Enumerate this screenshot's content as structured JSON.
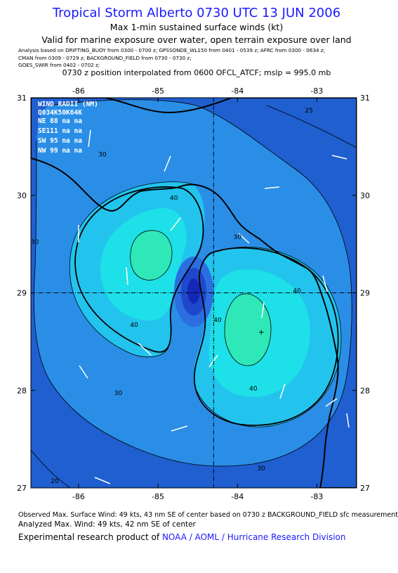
{
  "header": {
    "title": "Tropical Storm Alberto 0730 UTC 13 JUN 2006",
    "subtitle1": "Max 1-min sustained surface winds (kt)",
    "subtitle2": "Valid for marine exposure over water, open terrain exposure over land",
    "analysis_lines": [
      "Analysis based on   DRIFTING_BUOY from 0300 - 0700 z;  GPSSONDE_WL150 from 0401 - 0539 z;   AFRC from 0300 - 0634 z;",
      "CMAN from 0309 - 0729 z;   BACKGROUND_FIELD from 0730 - 0730 z;",
      "GOES_SWIR from 0402 - 0702 z;"
    ],
    "position_note": "0730 z position interpolated from 0600 OFCL_ATCF; mslp = 995.0 mb"
  },
  "map": {
    "lon_ticks": [
      "-86",
      "-85",
      "-84",
      "-83"
    ],
    "lat_ticks": [
      "31",
      "30",
      "29",
      "28",
      "27"
    ],
    "lon_range": [
      -86.6,
      -82.5
    ],
    "lat_range": [
      27,
      31
    ],
    "center": {
      "lon": -84.3,
      "lat": 29.0
    },
    "max_wind_marker": {
      "lon": -83.7,
      "lat": 28.6
    },
    "contour_labels": [
      {
        "text": "25",
        "lon": -83.1,
        "lat": 30.85
      },
      {
        "text": "30",
        "lon": -85.7,
        "lat": 30.4
      },
      {
        "text": "30",
        "lon": -86.55,
        "lat": 29.5
      },
      {
        "text": "30",
        "lon": -85.5,
        "lat": 27.95
      },
      {
        "text": "30",
        "lon": -84.0,
        "lat": 29.55
      },
      {
        "text": "30",
        "lon": -83.7,
        "lat": 27.18
      },
      {
        "text": "40",
        "lon": -85.3,
        "lat": 28.65
      },
      {
        "text": "40",
        "lon": -84.8,
        "lat": 29.95
      },
      {
        "text": "40",
        "lon": -84.25,
        "lat": 28.7
      },
      {
        "text": "40",
        "lon": -83.8,
        "lat": 28.0
      },
      {
        "text": "40",
        "lon": -83.25,
        "lat": 29.0
      },
      {
        "text": "20",
        "lon": -86.3,
        "lat": 27.05
      }
    ],
    "wind_radii": {
      "header": "WIND RADII (NM)",
      "columns": "Q034K50K64K",
      "rows": [
        "NE 88  na  na",
        "SE111  na  na",
        "SW 95  na  na",
        "NW 99  na  na"
      ]
    }
  },
  "footer": {
    "observed": "Observed Max. Surface Wind: 49 kts, 43 nm SE of center based on 0730 z BACKGROUND_FIELD sfc measurement",
    "analyzed": "Analyzed Max. Wind: 49 kts, 42 nm SE of center",
    "product_prefix": "Experimental research product of",
    "product_org": "NOAA / AOML / Hurricane Research Division"
  },
  "colors": {
    "title": "#1a1aff",
    "band_25": "#1f5fd0",
    "band_30": "#2a8ee6",
    "band_40": "#22c4ee",
    "band_45": "#1ee0e8",
    "band_48": "#2ee8b8",
    "vortex_inner": "#1428b8"
  }
}
